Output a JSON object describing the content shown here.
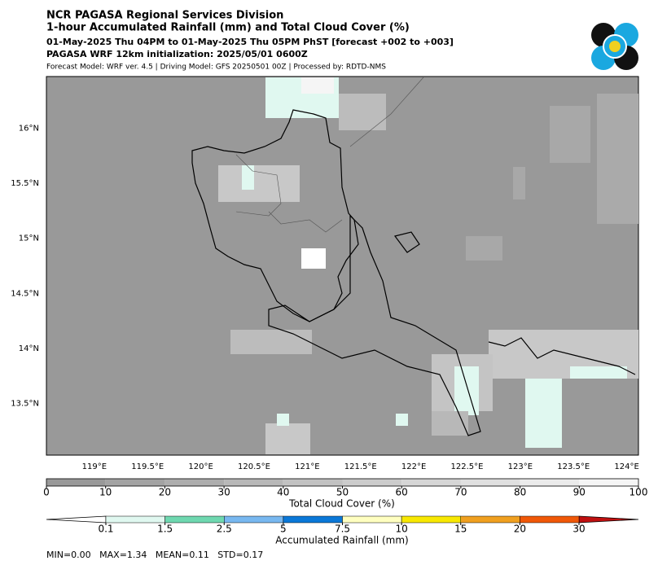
{
  "header": {
    "lines": [
      "NCR PAGASA Regional Services Division",
      "1-hour Accumulated Rainfall (mm) and Total Cloud Cover (%)",
      "01-May-2025 Thu 04PM to 01-May-2025 Thu 05PM PhST [forecast +002 to +003]",
      "PAGASA WRF 12km initialization: 2025/05/01 0600Z",
      "Forecast Model: WRF ver. 4.5 | Driving Model: GFS 20250501 00Z | Processed by: RDTD-NMS"
    ]
  },
  "map": {
    "lon_range": [
      118.55,
      124.11
    ],
    "lat_range": [
      13.03,
      16.47
    ],
    "lon_ticks": [
      {
        "value": 119,
        "label": "119°E"
      },
      {
        "value": 119.5,
        "label": "119.5°E"
      },
      {
        "value": 120,
        "label": "120°E"
      },
      {
        "value": 120.5,
        "label": "120.5°E"
      },
      {
        "value": 121,
        "label": "121°E"
      },
      {
        "value": 121.5,
        "label": "121.5°E"
      },
      {
        "value": 122,
        "label": "122°E"
      },
      {
        "value": 122.5,
        "label": "122.5°E"
      },
      {
        "value": 123,
        "label": "123°E"
      },
      {
        "value": 123.5,
        "label": "123.5°E"
      },
      {
        "value": 124,
        "label": "124°E"
      }
    ],
    "lat_ticks": [
      {
        "value": 16,
        "label": "16°N"
      },
      {
        "value": 15.5,
        "label": "15.5°N"
      },
      {
        "value": 15,
        "label": "15°N"
      },
      {
        "value": 14.5,
        "label": "14.5°N"
      },
      {
        "value": 14,
        "label": "14°N"
      },
      {
        "value": 13.5,
        "label": "13.5°N"
      }
    ]
  },
  "cloud_bar": {
    "ticks": [
      0,
      10,
      20,
      30,
      40,
      50,
      60,
      70,
      80,
      90,
      100
    ],
    "colors": [
      "#999999",
      "#a3a3a3",
      "#adadad",
      "#b8b8b8",
      "#c2c2c2",
      "#cccccc",
      "#d6d6d6",
      "#e0e0e0",
      "#ebebeb",
      "#f5f5f5"
    ],
    "title": "Total Cloud Cover (%)"
  },
  "rain_bar": {
    "levels": [
      0.1,
      1.5,
      2.5,
      5,
      7.5,
      10,
      15,
      20,
      30
    ],
    "colors": [
      "#e0f8f0",
      "#6fd8b0",
      "#78b8f0",
      "#0a78d8",
      "#ffffc0",
      "#f8e800",
      "#f0a020",
      "#f05808"
    ],
    "under_color": "#ffffff",
    "over_color": "#c01010",
    "title": "Accumulated Rainfall (mm)"
  },
  "stats": "MIN=0.00   MAX=1.34   MEAN=0.11   STD=0.17"
}
